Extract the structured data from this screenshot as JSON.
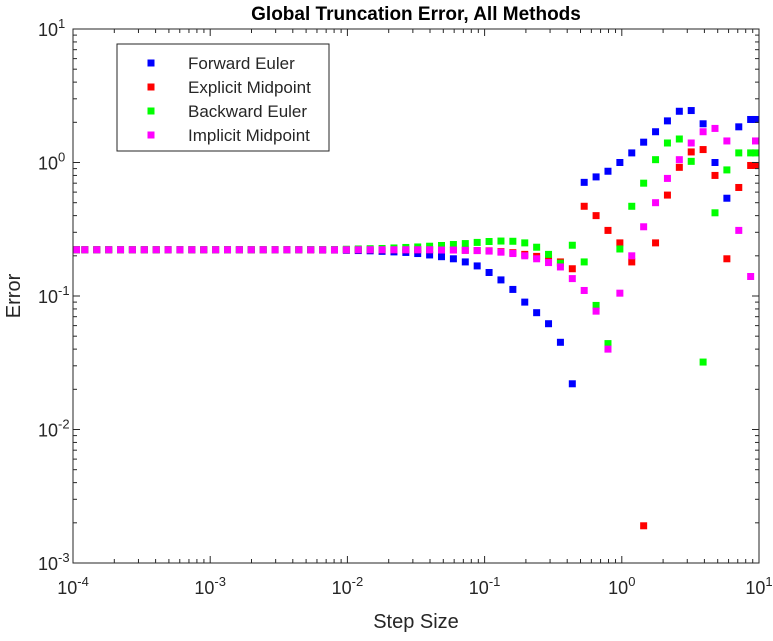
{
  "chart_data": {
    "type": "scatter",
    "title": "Global Truncation Error, All Methods",
    "xlabel": "Step Size",
    "ylabel": "Error",
    "xscale": "log",
    "yscale": "log",
    "xlim": [
      0.0001,
      10
    ],
    "ylim": [
      0.001,
      10
    ],
    "xticks": [
      {
        "base": "10",
        "exp": "-4"
      },
      {
        "base": "10",
        "exp": "-3"
      },
      {
        "base": "10",
        "exp": "-2"
      },
      {
        "base": "10",
        "exp": "-1"
      },
      {
        "base": "10",
        "exp": "0"
      },
      {
        "base": "10",
        "exp": "1"
      }
    ],
    "yticks": [
      {
        "base": "10",
        "exp": "-3"
      },
      {
        "base": "10",
        "exp": "-2"
      },
      {
        "base": "10",
        "exp": "-1"
      },
      {
        "base": "10",
        "exp": "0"
      },
      {
        "base": "10",
        "exp": "1"
      }
    ],
    "grid": false,
    "legend_position": "top-left",
    "x": [
      0.0001,
      0.000122,
      0.000149,
      0.000182,
      0.000222,
      0.000271,
      0.000331,
      0.000404,
      0.000493,
      0.000602,
      0.000735,
      0.000897,
      0.001095,
      0.001337,
      0.001632,
      0.001992,
      0.002432,
      0.002969,
      0.003625,
      0.004425,
      0.005402,
      0.006596,
      0.008052,
      0.00983,
      0.012,
      0.01465,
      0.01789,
      0.02184,
      0.02666,
      0.03255,
      0.03974,
      0.04852,
      0.05924,
      0.07232,
      0.08829,
      0.1078,
      0.1316,
      0.1607,
      0.1962,
      0.2395,
      0.2924,
      0.357,
      0.4358,
      0.532,
      0.6495,
      0.793,
      0.9681,
      1.182,
      1.443,
      1.762,
      2.151,
      2.626,
      3.206,
      3.914,
      4.778,
      5.833,
      7.122,
      8.694,
      10.0
    ],
    "series": [
      {
        "name": "Forward Euler",
        "color": "#0000ff",
        "values": [
          0.222,
          0.222,
          0.222,
          0.222,
          0.222,
          0.222,
          0.222,
          0.222,
          0.222,
          0.222,
          0.222,
          0.222,
          0.222,
          0.222,
          0.222,
          0.222,
          0.222,
          0.222,
          0.222,
          0.222,
          0.222,
          0.221,
          0.221,
          0.22,
          0.219,
          0.218,
          0.216,
          0.214,
          0.212,
          0.208,
          0.203,
          0.197,
          0.19,
          0.18,
          0.168,
          0.15,
          0.132,
          0.112,
          0.09,
          0.075,
          0.062,
          0.045,
          0.022,
          0.71,
          0.78,
          0.86,
          1.0,
          1.18,
          1.42,
          1.7,
          2.05,
          2.42,
          2.45,
          1.95,
          1.0,
          0.54,
          1.85,
          2.1,
          2.1
        ]
      },
      {
        "name": "Explicit Midpoint",
        "color": "#ff0000",
        "values": [
          0.222,
          0.222,
          0.222,
          0.222,
          0.222,
          0.222,
          0.222,
          0.222,
          0.222,
          0.222,
          0.222,
          0.222,
          0.222,
          0.222,
          0.222,
          0.222,
          0.222,
          0.222,
          0.222,
          0.222,
          0.222,
          0.222,
          0.222,
          0.222,
          0.222,
          0.222,
          0.222,
          0.222,
          0.222,
          0.222,
          0.222,
          0.222,
          0.221,
          0.22,
          0.219,
          0.218,
          0.215,
          0.211,
          0.205,
          0.198,
          0.19,
          0.18,
          0.16,
          0.47,
          0.4,
          0.31,
          0.25,
          0.18,
          0.0019,
          0.25,
          0.57,
          0.92,
          1.2,
          1.25,
          0.8,
          0.19,
          0.65,
          0.95,
          0.95
        ]
      },
      {
        "name": "Backward Euler",
        "color": "#00ff00",
        "values": [
          0.222,
          0.222,
          0.222,
          0.222,
          0.222,
          0.222,
          0.222,
          0.222,
          0.222,
          0.222,
          0.222,
          0.222,
          0.222,
          0.222,
          0.222,
          0.222,
          0.222,
          0.222,
          0.222,
          0.222,
          0.223,
          0.223,
          0.223,
          0.224,
          0.225,
          0.226,
          0.227,
          0.229,
          0.231,
          0.233,
          0.236,
          0.239,
          0.243,
          0.247,
          0.252,
          0.256,
          0.258,
          0.257,
          0.25,
          0.232,
          0.205,
          0.176,
          0.24,
          0.18,
          0.085,
          0.044,
          0.225,
          0.47,
          0.7,
          1.05,
          1.4,
          1.5,
          1.02,
          0.032,
          0.42,
          0.88,
          1.18,
          1.18,
          1.18
        ]
      },
      {
        "name": "Implicit Midpoint",
        "color": "#ff00ff",
        "values": [
          0.222,
          0.222,
          0.222,
          0.222,
          0.222,
          0.222,
          0.222,
          0.222,
          0.222,
          0.222,
          0.222,
          0.222,
          0.222,
          0.222,
          0.222,
          0.222,
          0.222,
          0.222,
          0.222,
          0.222,
          0.222,
          0.222,
          0.222,
          0.222,
          0.222,
          0.222,
          0.222,
          0.222,
          0.222,
          0.222,
          0.222,
          0.221,
          0.221,
          0.22,
          0.219,
          0.217,
          0.213,
          0.208,
          0.2,
          0.19,
          0.178,
          0.165,
          0.135,
          0.11,
          0.077,
          0.04,
          0.105,
          0.2,
          0.33,
          0.5,
          0.76,
          1.05,
          1.4,
          1.7,
          1.8,
          1.45,
          0.31,
          0.14,
          1.45
        ]
      }
    ]
  }
}
